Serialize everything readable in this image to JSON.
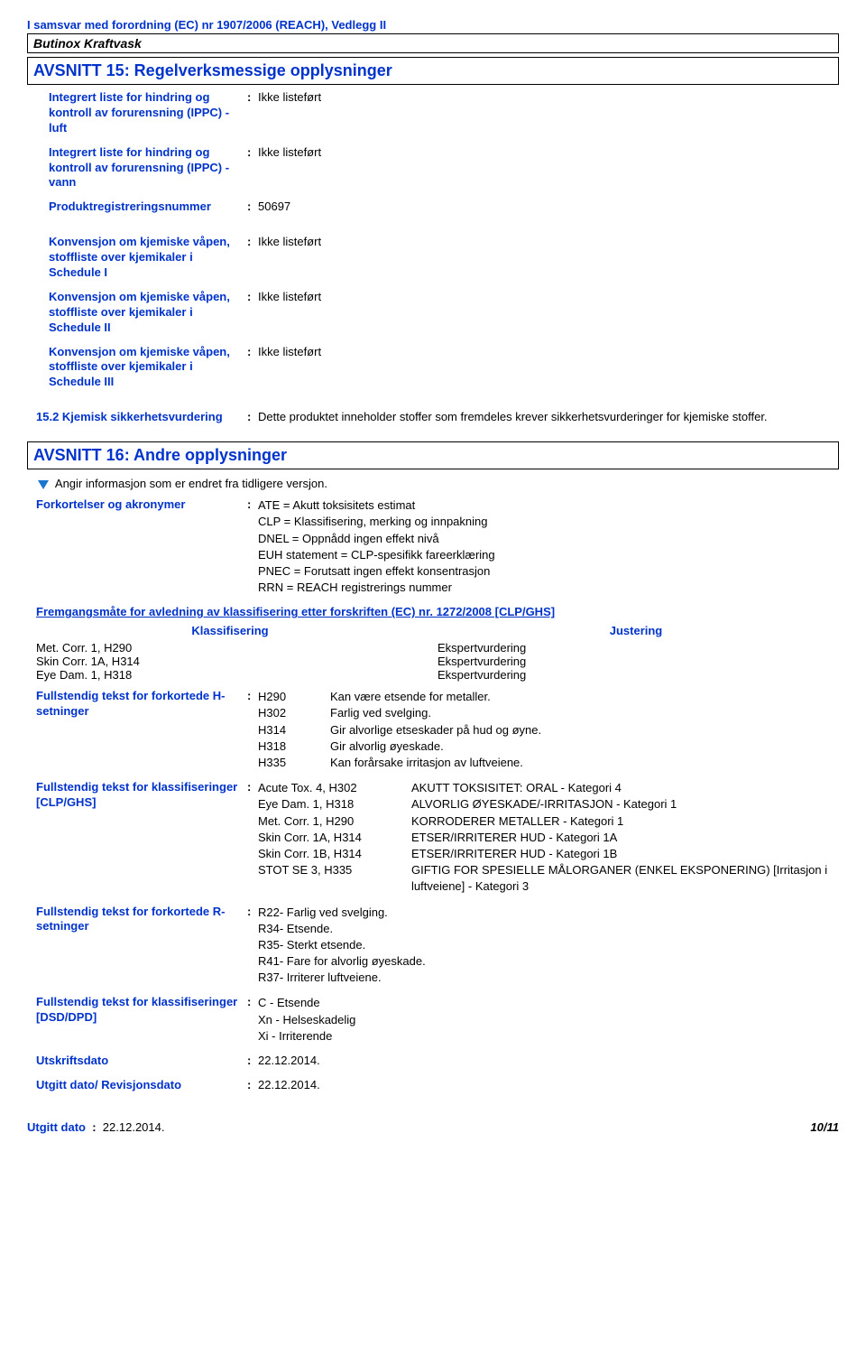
{
  "header": {
    "compliance": "I samsvar med forordning (EC) nr 1907/2006 (REACH), Vedlegg II",
    "product_name": "Butinox Kraftvask"
  },
  "section15": {
    "title": "AVSNITT 15: Regelverksmessige opplysninger",
    "items": [
      {
        "label": "Integrert liste for hindring og kontroll av forurensning (IPPC) - luft",
        "value": "Ikke listeført"
      },
      {
        "label": "Integrert liste for hindring og kontroll av forurensning (IPPC) - vann",
        "value": "Ikke listeført"
      },
      {
        "label": "Produktregistreringsnummer",
        "value": "50697"
      }
    ],
    "conventions": [
      {
        "label": "Konvensjon om kjemiske våpen, stoffliste over kjemikaler i Schedule I",
        "value": "Ikke listeført"
      },
      {
        "label": "Konvensjon om kjemiske våpen, stoffliste over kjemikaler i Schedule II",
        "value": "Ikke listeført"
      },
      {
        "label": "Konvensjon om kjemiske våpen, stoffliste over kjemikaler i Schedule III",
        "value": "Ikke listeført"
      }
    ],
    "assessment": {
      "label": "15.2 Kjemisk sikkerhetsvurdering",
      "value": "Dette produktet inneholder stoffer som fremdeles krever sikkerhetsvurderinger for kjemiske stoffer."
    }
  },
  "section16": {
    "title": "AVSNITT 16: Andre opplysninger",
    "change_note": "Angir informasjon som er endret fra tidligere versjon.",
    "abbrev": {
      "label": "Forkortelser og akronymer",
      "lines": [
        "ATE = Akutt toksisitets estimat",
        "CLP = Klassifisering, merking og innpakning",
        "DNEL = Oppnådd ingen effekt nivå",
        "EUH statement = CLP-spesifikk fareerklæring",
        "PNEC = Forutsatt ingen effekt konsentrasjon",
        "RRN = REACH registrerings nummer"
      ]
    },
    "derivation_heading": "Fremgangsmåte for avledning av klassifisering etter forskriften (EC) nr. 1272/2008 [CLP/GHS]",
    "table_headers": {
      "left": "Klassifisering",
      "right": "Justering"
    },
    "classif_rows": [
      {
        "left": "Met. Corr. 1, H290",
        "right": "Ekspertvurdering"
      },
      {
        "left": "Skin Corr. 1A, H314",
        "right": "Ekspertvurdering"
      },
      {
        "left": "Eye Dam. 1, H318",
        "right": "Ekspertvurdering"
      }
    ],
    "h_statements": {
      "label": "Fullstendig tekst for forkortede H-setninger",
      "rows": [
        {
          "code": "H290",
          "text": "Kan være etsende for metaller."
        },
        {
          "code": "H302",
          "text": "Farlig ved svelging."
        },
        {
          "code": "H314",
          "text": "Gir alvorlige etseskader på hud og øyne."
        },
        {
          "code": "H318",
          "text": "Gir alvorlig øyeskade."
        },
        {
          "code": "H335",
          "text": "Kan forårsake irritasjon av luftveiene."
        }
      ]
    },
    "clp_class": {
      "label": "Fullstendig tekst for klassifiseringer [CLP/GHS]",
      "rows": [
        {
          "left": "Acute Tox. 4, H302",
          "right": "AKUTT TOKSISITET: ORAL - Kategori 4"
        },
        {
          "left": "Eye Dam. 1, H318",
          "right": "ALVORLIG ØYESKADE/-IRRITASJON - Kategori 1"
        },
        {
          "left": "Met. Corr. 1, H290",
          "right": "KORRODERER METALLER - Kategori 1"
        },
        {
          "left": "Skin Corr. 1A, H314",
          "right": "ETSER/IRRITERER HUD - Kategori 1A"
        },
        {
          "left": "Skin Corr. 1B, H314",
          "right": "ETSER/IRRITERER HUD - Kategori 1B"
        },
        {
          "left": "STOT SE 3, H335",
          "right": "GIFTIG FOR SPESIELLE MÅLORGANER (ENKEL EKSPONERING) [Irritasjon i luftveiene]  - Kategori 3"
        }
      ]
    },
    "r_statements": {
      "label": "Fullstendig tekst for forkortede R-setninger",
      "lines": [
        "R22- Farlig ved svelging.",
        "R34- Etsende.",
        "R35- Sterkt etsende.",
        "R41- Fare for alvorlig øyeskade.",
        "R37- Irriterer luftveiene."
      ]
    },
    "dsd_class": {
      "label": "Fullstendig tekst for klassifiseringer [DSD/DPD]",
      "lines": [
        "C - Etsende",
        "Xn - Helseskadelig",
        "Xi - Irriterende"
      ]
    },
    "print_date": {
      "label": "Utskriftsdato",
      "value": "22.12.2014."
    },
    "rev_date": {
      "label": "Utgitt dato/ Revisjonsdato",
      "value": "22.12.2014."
    }
  },
  "footer": {
    "issued_label": "Utgitt dato",
    "issued_value": "22.12.2014.",
    "page": "10/11"
  }
}
